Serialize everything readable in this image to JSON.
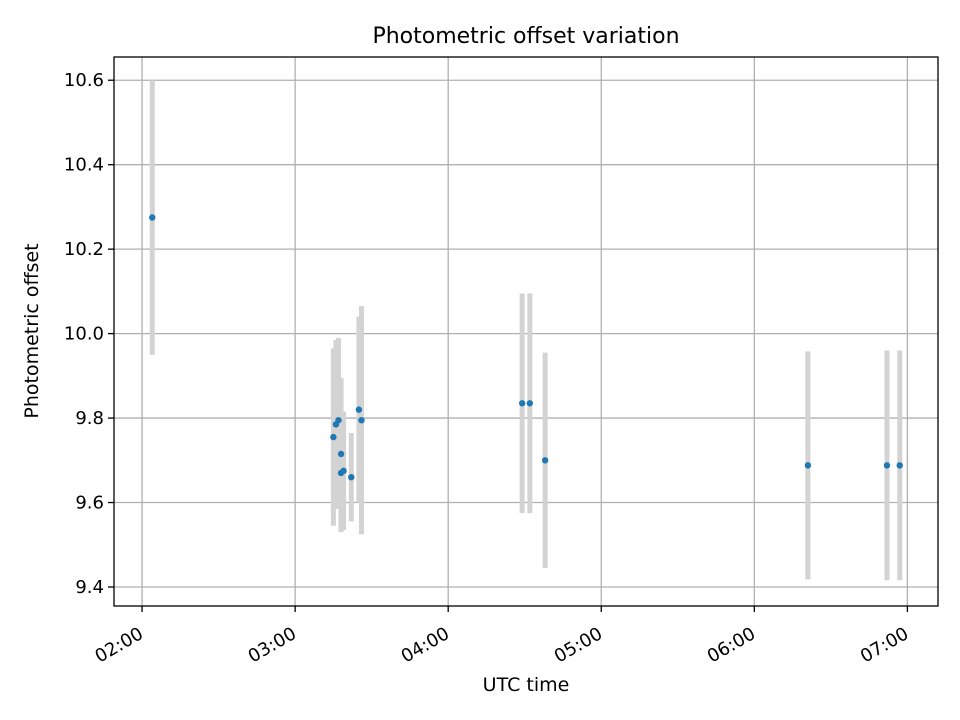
{
  "chart_data": {
    "type": "scatter",
    "title": "Photometric offset variation",
    "xlabel": "UTC time",
    "ylabel": "Photometric offset",
    "x_axis_type": "time",
    "xlim": [
      "01:49",
      "07:12"
    ],
    "ylim": [
      9.355,
      10.655
    ],
    "grid": true,
    "x_ticks": [
      "02:00",
      "03:00",
      "04:00",
      "05:00",
      "06:00",
      "07:00"
    ],
    "y_ticks": [
      "9.4",
      "9.6",
      "9.8",
      "10.0",
      "10.2",
      "10.4",
      "10.6"
    ],
    "colors": {
      "marker": "#1f77b4",
      "errorbar": "#d3d3d3",
      "grid": "#b0b0b0"
    },
    "points": [
      {
        "x": "02:04",
        "y": 10.275,
        "err": 0.325
      },
      {
        "x": "03:15",
        "y": 9.755,
        "err": 0.21
      },
      {
        "x": "03:16",
        "y": 9.785,
        "err": 0.2
      },
      {
        "x": "03:17",
        "y": 9.795,
        "err": 0.195
      },
      {
        "x": "03:18",
        "y": 9.715,
        "err": 0.18
      },
      {
        "x": "03:18",
        "y": 9.67,
        "err": 0.14
      },
      {
        "x": "03:19",
        "y": 9.675,
        "err": 0.14
      },
      {
        "x": "03:22",
        "y": 9.66,
        "err": 0.105
      },
      {
        "x": "03:25",
        "y": 9.82,
        "err": 0.22
      },
      {
        "x": "03:26",
        "y": 9.795,
        "err": 0.27
      },
      {
        "x": "04:29",
        "y": 9.835,
        "err": 0.26
      },
      {
        "x": "04:32",
        "y": 9.835,
        "err": 0.26
      },
      {
        "x": "04:38",
        "y": 9.7,
        "err": 0.255
      },
      {
        "x": "06:21",
        "y": 9.688,
        "err": 0.27
      },
      {
        "x": "06:52",
        "y": 9.688,
        "err": 0.272
      },
      {
        "x": "06:57",
        "y": 9.688,
        "err": 0.272
      }
    ]
  }
}
